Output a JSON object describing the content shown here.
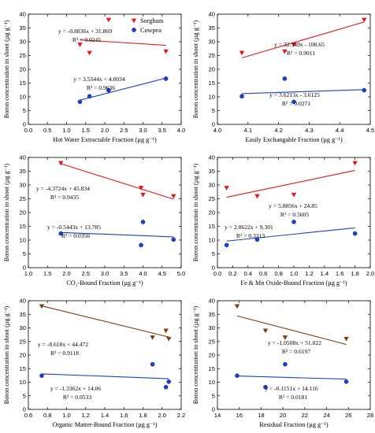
{
  "charts": [
    {
      "xlabel": "Hot Water Extractable Fraction (µg g⁻¹)",
      "ylabel": "Boron concentration in shoot (µg g⁻¹)",
      "xlim": [
        0.0,
        4.0
      ],
      "xticks": [
        0.0,
        0.5,
        1.0,
        1.5,
        2.0,
        2.5,
        3.0,
        3.5,
        4.0
      ],
      "ylim": [
        0,
        40
      ],
      "yticks": [
        0,
        5,
        10,
        15,
        20,
        25,
        30,
        35,
        40
      ],
      "legend": [
        "Sorgham",
        "Cowpea"
      ],
      "series": [
        {
          "name": "Sorgham",
          "shape": "triangle-down",
          "color": "#e8141c",
          "x": [
            1.35,
            1.6,
            2.1,
            3.6
          ],
          "y": [
            29,
            26,
            38,
            26.5
          ],
          "fit": {
            "slope": -0.8836,
            "intercept": 31.869,
            "x_range": [
              1.35,
              3.6
            ]
          },
          "eq": "y = -0.8836x + 31.869",
          "r2": "R² = 0.0245"
        },
        {
          "name": "Cowpea",
          "shape": "circle",
          "color": "#1f3fc8",
          "x": [
            1.35,
            1.6,
            2.1,
            3.6
          ],
          "y": [
            8.2,
            10.2,
            12.4,
            16.6
          ],
          "fit": {
            "slope": 3.5544,
            "intercept": 4.0034,
            "x_range": [
              1.35,
              3.6
            ]
          },
          "eq": "y = 3.5544x + 4.0034",
          "r2": "R² = 0.9636"
        }
      ]
    },
    {
      "xlabel": "Easily Exchangable Fraction (µg g⁻¹)",
      "ylabel": "Boron concentration in shoot (µg g⁻¹)",
      "xlim": [
        4.0,
        4.5
      ],
      "xticks": [
        4.0,
        4.1,
        4.2,
        4.3,
        4.4,
        4.5
      ],
      "ylim": [
        0,
        40
      ],
      "yticks": [
        0,
        5,
        10,
        15,
        20,
        25,
        30,
        35,
        40
      ],
      "series": [
        {
          "shape": "triangle-down",
          "color": "#e8141c",
          "x": [
            4.08,
            4.22,
            4.25,
            4.48
          ],
          "y": [
            26,
            26.5,
            29,
            38
          ],
          "fit": {
            "slope": 32.549,
            "intercept": -108.65,
            "x_range": [
              4.08,
              4.48
            ]
          },
          "eq": "y = 32.549x - 108.65",
          "r2": "R² = 0.9011"
        },
        {
          "shape": "circle",
          "color": "#1f3fc8",
          "x": [
            4.08,
            4.22,
            4.25,
            4.48
          ],
          "y": [
            10.2,
            16.6,
            8.2,
            12.4
          ],
          "fit": {
            "slope": 3.6213,
            "intercept": -3.6125,
            "x_range": [
              4.08,
              4.48
            ]
          },
          "eq": "y = 3.6213x - 3.6125",
          "r2": "R² = 0.0271"
        }
      ]
    },
    {
      "xlabel": "CO₂-Bound Fraction (µg g⁻¹)",
      "ylabel": "Boron concentration in shoot (µg g⁻¹)",
      "xlim": [
        1.0,
        5.0
      ],
      "xticks": [
        1.0,
        1.5,
        2.0,
        2.5,
        3.0,
        3.5,
        4.0,
        4.5,
        5.0
      ],
      "ylim": [
        0,
        40
      ],
      "yticks": [
        0,
        5,
        10,
        15,
        20,
        25,
        30,
        35,
        40
      ],
      "series": [
        {
          "shape": "triangle-down",
          "color": "#e8141c",
          "x": [
            1.85,
            3.95,
            4.0,
            4.8
          ],
          "y": [
            38,
            29,
            26.5,
            26
          ],
          "fit": {
            "slope": -4.3724,
            "intercept": 45.834,
            "x_range": [
              1.85,
              4.8
            ]
          },
          "eq": "y = -4.3724x + 45.834",
          "r2": "R² = 0.9435"
        },
        {
          "shape": "circle",
          "color": "#1f3fc8",
          "x": [
            1.85,
            3.95,
            4.0,
            4.8
          ],
          "y": [
            12.4,
            8.2,
            16.6,
            10.2
          ],
          "fit": {
            "slope": -0.5443,
            "intercept": 13.785,
            "x_range": [
              1.85,
              4.8
            ]
          },
          "eq": "y = -0.5443x + 13.785",
          "r2": "R² = 0.0356"
        }
      ]
    },
    {
      "xlabel": "Fe & Mn Oxide-Bound Fraction (µg g⁻¹)",
      "ylabel": "Boron concentration in shoot (µg g⁻¹)",
      "xlim": [
        0.0,
        2.0
      ],
      "xticks": [
        0.0,
        0.2,
        0.4,
        0.6,
        0.8,
        1.0,
        1.2,
        1.4,
        1.6,
        1.8,
        2.0
      ],
      "ylim": [
        0,
        40
      ],
      "yticks": [
        0,
        5,
        10,
        15,
        20,
        25,
        30,
        35,
        40
      ],
      "series": [
        {
          "shape": "triangle-down",
          "color": "#e8141c",
          "x": [
            0.12,
            0.52,
            1.0,
            1.8
          ],
          "y": [
            29,
            26,
            26.5,
            38
          ],
          "fit": {
            "slope": 5.8056,
            "intercept": 24.85,
            "x_range": [
              0.12,
              1.8
            ]
          },
          "eq": "y = 5.8056x + 24.85",
          "r2": "R² = 0.5605"
        },
        {
          "shape": "circle",
          "color": "#1f3fc8",
          "x": [
            0.12,
            0.52,
            1.0,
            1.8
          ],
          "y": [
            8.2,
            10.2,
            16.6,
            12.4
          ],
          "fit": {
            "slope": 2.8622,
            "intercept": 9.301,
            "x_range": [
              0.12,
              1.8
            ]
          },
          "eq": "y = 2.8622x + 9.301",
          "r2": "R² = 0.3313"
        }
      ]
    },
    {
      "xlabel": "Organic Matter-Bound Fraction (µg g⁻¹)",
      "ylabel": "Boron concentration in shoot (µg g⁻¹)",
      "xlim": [
        0.6,
        2.2
      ],
      "xticks": [
        0.6,
        0.8,
        1.0,
        1.2,
        1.4,
        1.6,
        1.8,
        2.0,
        2.2
      ],
      "ylim": [
        0,
        40
      ],
      "yticks": [
        0,
        5,
        10,
        15,
        20,
        25,
        30,
        35,
        40
      ],
      "series": [
        {
          "shape": "triangle-down",
          "color": "#7a3d0a",
          "x": [
            0.74,
            1.9,
            2.04,
            2.07
          ],
          "y": [
            38,
            26.5,
            29,
            26
          ],
          "fit": {
            "slope": -8.618,
            "intercept": 44.472,
            "x_range": [
              0.74,
              2.07
            ]
          },
          "eq": "y = -8.618x + 44.472",
          "r2": "R² = 0.9118"
        },
        {
          "shape": "circle",
          "color": "#1f3fc8",
          "x": [
            0.74,
            1.9,
            2.04,
            2.07
          ],
          "y": [
            12.4,
            16.6,
            8.2,
            10.2
          ],
          "fit": {
            "slope": -1.3362,
            "intercept": 14.06,
            "x_range": [
              0.74,
              2.07
            ]
          },
          "eq": "y = -1.3362x + 14.06",
          "r2": "R² = 0.0533"
        }
      ]
    },
    {
      "xlabel": "Residual Fraction (µg g⁻¹)",
      "ylabel": "Boron concentration in shoot (µg g⁻¹)",
      "xlim": [
        14,
        28
      ],
      "xticks": [
        14,
        16,
        18,
        20,
        22,
        24,
        26,
        28
      ],
      "ylim": [
        0,
        40
      ],
      "yticks": [
        0,
        5,
        10,
        15,
        20,
        25,
        30,
        35,
        40
      ],
      "series": [
        {
          "shape": "triangle-down",
          "color": "#7a3d0a",
          "x": [
            15.8,
            18.4,
            20.2,
            25.8
          ],
          "y": [
            38,
            29,
            26.5,
            26
          ],
          "fit": {
            "slope": -1.0508,
            "intercept": 51.022,
            "x_range": [
              15.8,
              25.8
            ]
          },
          "eq": "y = -1.0508x + 51.022",
          "r2": "R² = 0.6197"
        },
        {
          "shape": "circle",
          "color": "#1f3fc8",
          "x": [
            15.8,
            18.4,
            20.2,
            25.8
          ],
          "y": [
            12.4,
            8.2,
            16.6,
            10.2
          ],
          "fit": {
            "slope": -0.1151,
            "intercept": 14.116,
            "x_range": [
              15.8,
              25.8
            ]
          },
          "eq": "y = -0.1151x + 14.116",
          "r2": "R² = 0.0181"
        }
      ]
    }
  ]
}
